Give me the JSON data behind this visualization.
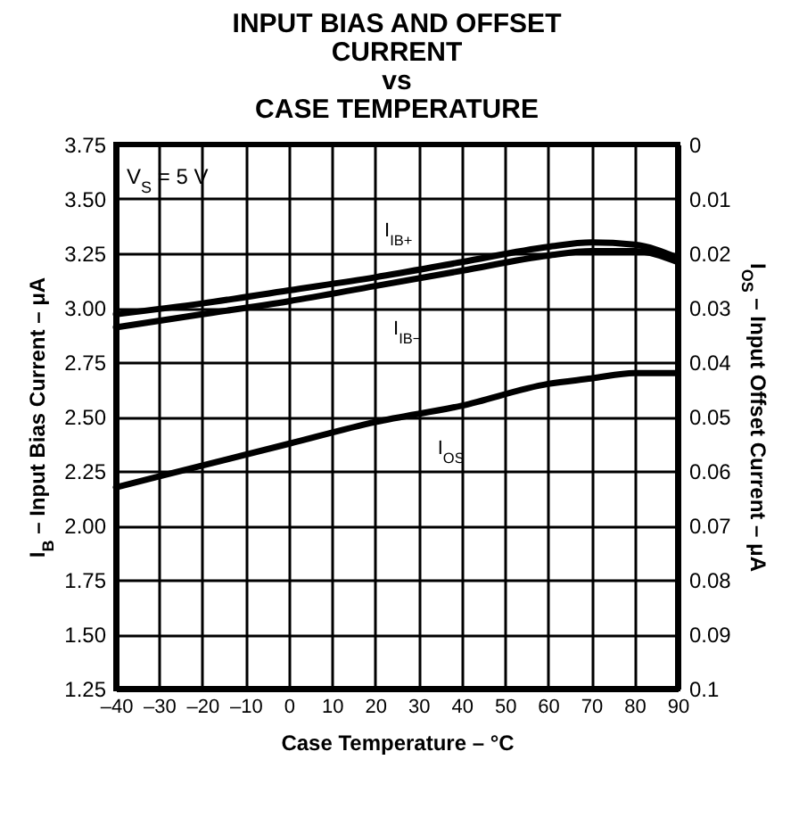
{
  "chart_data": {
    "type": "line",
    "title": "INPUT BIAS AND OFFSET\nCURRENT\nvs\nCASE TEMPERATURE",
    "xlabel": "Case Temperature – °C",
    "ylabel": "I$_{B}$ – Input Bias Current – μA",
    "y2label": "I$_{OS}$ – Input Offset Current – μA",
    "annotations": [
      "V$_{S}$ = 5 V"
    ],
    "x": [
      -40,
      -20,
      0,
      20,
      40,
      60,
      70,
      80,
      90
    ],
    "series": [
      {
        "name": "I$_{IB+}$",
        "color": "#000000",
        "values": [
          2.97,
          3.02,
          3.08,
          3.14,
          3.21,
          3.28,
          3.3,
          3.29,
          3.23
        ]
      },
      {
        "name": "I$_{IB−}$",
        "color": "#000000",
        "values": [
          2.91,
          2.97,
          3.03,
          3.1,
          3.17,
          3.24,
          3.26,
          3.26,
          3.21
        ]
      },
      {
        "name": "I$_{OS}$",
        "color": "#000000",
        "axis": "y2",
        "values": [
          0.063,
          0.059,
          0.055,
          0.051,
          0.048,
          0.044,
          0.043,
          0.042,
          0.042
        ]
      }
    ],
    "xlim": [
      -40,
      90
    ],
    "xticks": [
      {
        "value": -40,
        "label": "–40"
      },
      {
        "value": -30,
        "label": "–30"
      },
      {
        "value": -20,
        "label": "–20"
      },
      {
        "value": -10,
        "label": "–10"
      },
      0,
      10,
      20,
      30,
      40,
      50,
      60,
      70,
      80,
      90
    ],
    "ylim": [
      1.25,
      3.75
    ],
    "yticks": [
      {
        "value": 1.25,
        "label": "1.25"
      },
      {
        "value": 1.5,
        "label": "1.50"
      },
      {
        "value": 1.75,
        "label": "1.75"
      },
      {
        "value": 2,
        "label": "2.00"
      },
      {
        "value": 2.25,
        "label": "2.25"
      },
      {
        "value": 2.5,
        "label": "2.50"
      },
      {
        "value": 2.75,
        "label": "2.75"
      },
      {
        "value": 3,
        "label": "3.00"
      },
      {
        "value": 3.25,
        "label": "3.25"
      },
      {
        "value": 3.5,
        "label": "3.50"
      },
      {
        "value": 3.75,
        "label": "3.75"
      }
    ],
    "y2lim": [
      0.1,
      0
    ],
    "y2ticks": [
      0,
      0.01,
      0.02,
      0.03,
      0.04,
      0.05,
      0.06,
      0.07,
      0.08,
      0.09,
      0.1
    ],
    "grid": true,
    "marker": "none",
    "line_style": "solid"
  }
}
